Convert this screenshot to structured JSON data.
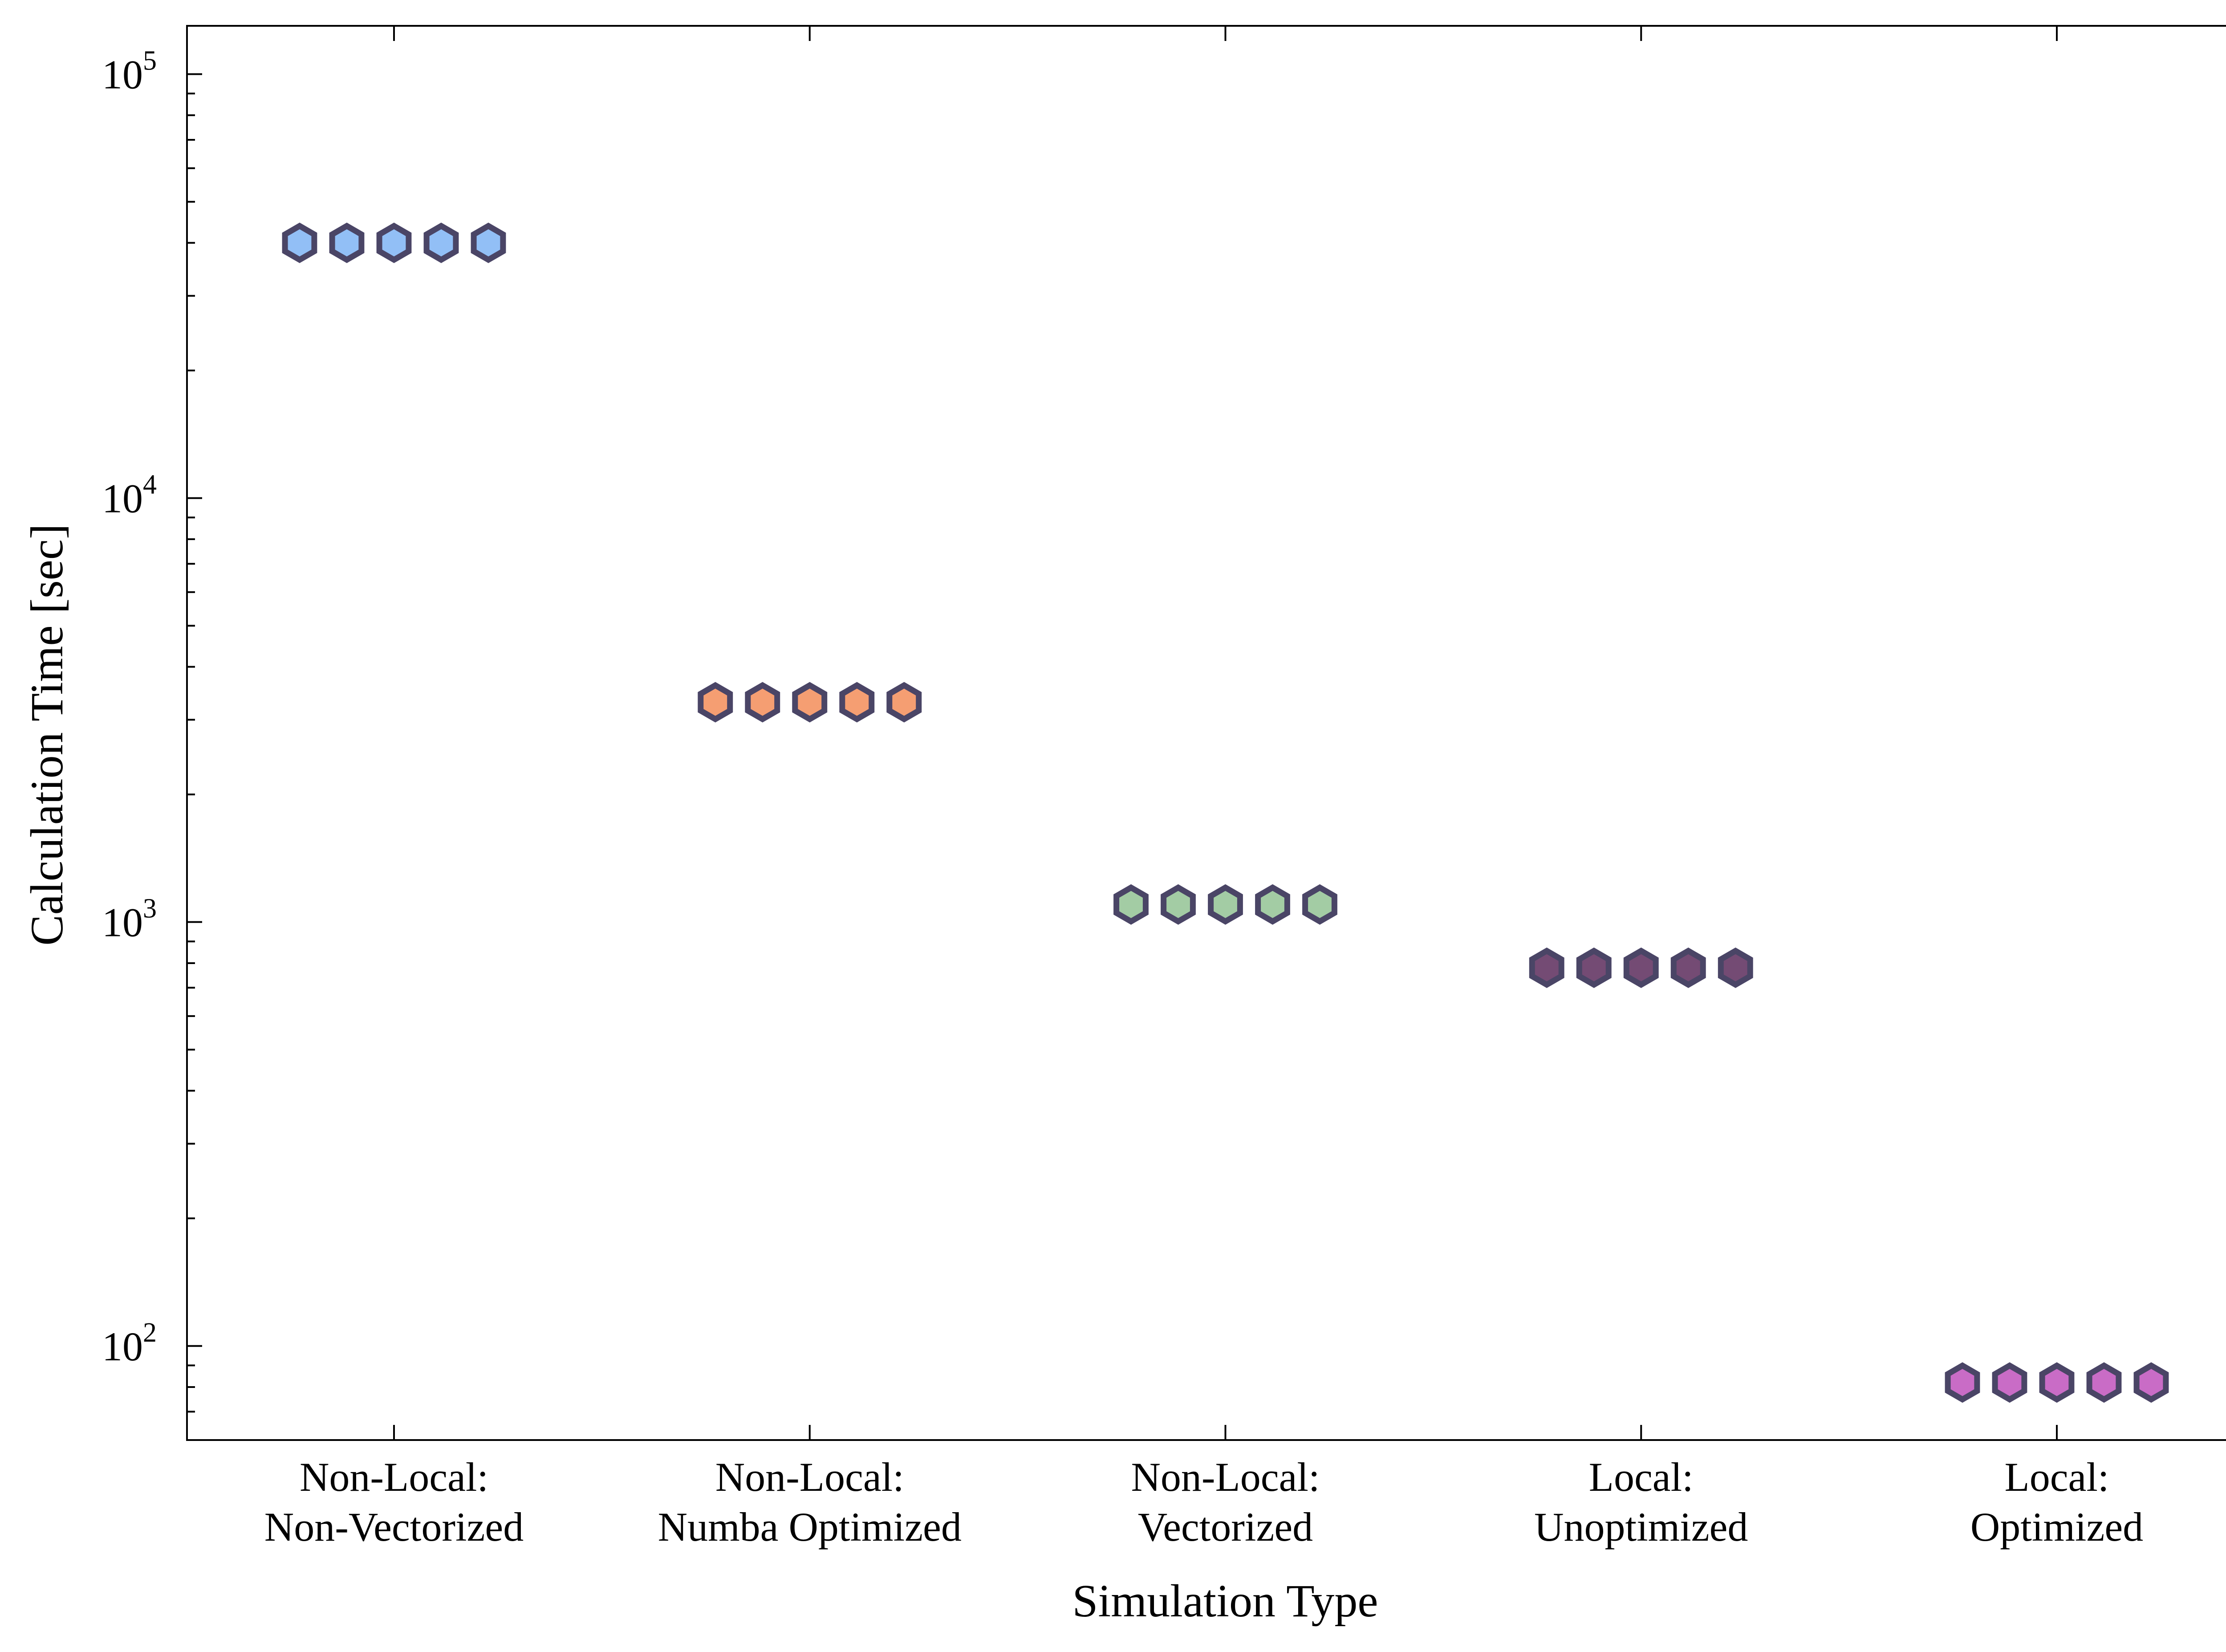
{
  "chart_data": {
    "type": "scatter",
    "title": "",
    "xlabel": "Simulation Type",
    "ylabel": "Calculation Time [sec]",
    "yscale": "log",
    "ylim": [
      60,
      130000
    ],
    "yticks": [
      {
        "base": "10",
        "exp": "2",
        "value": 100
      },
      {
        "base": "10",
        "exp": "3",
        "value": 1000
      },
      {
        "base": "10",
        "exp": "4",
        "value": 10000
      },
      {
        "base": "10",
        "exp": "5",
        "value": 100000
      }
    ],
    "grid": false,
    "marker": "hexagon",
    "edge_color": "#4a4566",
    "categories": [
      {
        "line1": "Non-Local:",
        "line2": "Non-Vectorized"
      },
      {
        "line1": "Non-Local:",
        "line2": "Numba Optimized"
      },
      {
        "line1": "Non-Local:",
        "line2": "Vectorized"
      },
      {
        "line1": "Local:",
        "line2": "Unoptimized"
      },
      {
        "line1": "Local:",
        "line2": "Optimized"
      }
    ],
    "series": [
      {
        "category_index": 0,
        "color": "#92bff6",
        "values": [
          40000,
          40000,
          40000,
          40000,
          40000
        ]
      },
      {
        "category_index": 1,
        "color": "#f59e72",
        "values": [
          3300,
          3300,
          3300,
          3300,
          3300
        ]
      },
      {
        "category_index": 2,
        "color": "#a3cca4",
        "values": [
          1100,
          1100,
          1100,
          1100,
          1100
        ]
      },
      {
        "category_index": 3,
        "color": "#744b74",
        "values": [
          780,
          780,
          780,
          780,
          780
        ]
      },
      {
        "category_index": 4,
        "color": "#c96cc6",
        "values": [
          82,
          82,
          82,
          82,
          82
        ]
      }
    ]
  }
}
